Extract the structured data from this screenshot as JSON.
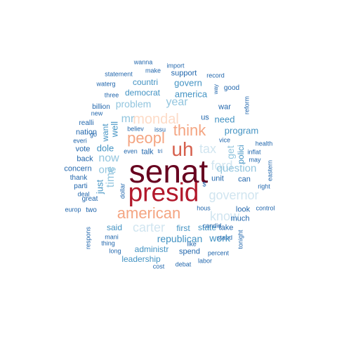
{
  "palette": {
    "c1": "#67001f",
    "c2": "#b2182b",
    "c3": "#d6604d",
    "c4": "#f4a582",
    "c5": "#fddbc7",
    "c6": "#d1e5f0",
    "c7": "#92c5de",
    "c8": "#4393c3",
    "c9": "#2166ac"
  },
  "words": [
    {
      "text": "senat",
      "color": "c1",
      "freq": 10
    },
    {
      "text": "presid",
      "color": "c2",
      "freq": 9
    },
    {
      "text": "uh",
      "color": "c3",
      "freq": 8
    },
    {
      "text": "peopl",
      "color": "c4",
      "freq": 7
    },
    {
      "text": "think",
      "color": "c4",
      "freq": 7
    },
    {
      "text": "american",
      "color": "c4",
      "freq": 7
    },
    {
      "text": "mondal",
      "color": "c5",
      "freq": 6
    },
    {
      "text": "carter",
      "color": "c6",
      "freq": 6
    },
    {
      "text": "governor",
      "color": "c6",
      "freq": 6
    },
    {
      "text": "ford",
      "color": "c6",
      "freq": 6
    },
    {
      "text": "tax",
      "color": "c6",
      "freq": 6
    },
    {
      "text": "know",
      "color": "c6",
      "freq": 6
    },
    {
      "text": "question",
      "color": "c7",
      "freq": 5
    },
    {
      "text": "mr",
      "color": "c7",
      "freq": 5
    },
    {
      "text": "year",
      "color": "c7",
      "freq": 5
    },
    {
      "text": "time",
      "color": "c7",
      "freq": 5
    },
    {
      "text": "now",
      "color": "c7",
      "freq": 5
    },
    {
      "text": "one",
      "color": "c7",
      "freq": 5
    },
    {
      "text": "problem",
      "color": "c7",
      "freq": 5
    },
    {
      "text": "get",
      "color": "c7",
      "freq": 5
    },
    {
      "text": "republican",
      "color": "c8",
      "freq": 4
    },
    {
      "text": "work",
      "color": "c8",
      "freq": 4
    },
    {
      "text": "program",
      "color": "c8",
      "freq": 4
    },
    {
      "text": "dole",
      "color": "c8",
      "freq": 4
    },
    {
      "text": "well",
      "color": "c8",
      "freq": 4
    },
    {
      "text": "want",
      "color": "c8",
      "freq": 4
    },
    {
      "text": "need",
      "color": "c8",
      "freq": 4
    },
    {
      "text": "america",
      "color": "c8",
      "freq": 4
    },
    {
      "text": "govern",
      "color": "c8",
      "freq": 4
    },
    {
      "text": "democrat",
      "color": "c8",
      "freq": 4
    },
    {
      "text": "just",
      "color": "c8",
      "freq": 4
    },
    {
      "text": "first",
      "color": "c8",
      "freq": 4
    },
    {
      "text": "state",
      "color": "c8",
      "freq": 4
    },
    {
      "text": "administr",
      "color": "c8",
      "freq": 4
    },
    {
      "text": "leadership",
      "color": "c8",
      "freq": 4
    },
    {
      "text": "polici",
      "color": "c8",
      "freq": 4
    },
    {
      "text": "said",
      "color": "c8",
      "freq": 4
    },
    {
      "text": "countri",
      "color": "c8",
      "freq": 4
    },
    {
      "text": "war",
      "color": "c9",
      "freq": 3
    },
    {
      "text": "us",
      "color": "c9",
      "freq": 3
    },
    {
      "text": "talk",
      "color": "c9",
      "freq": 3
    },
    {
      "text": "much",
      "color": "c9",
      "freq": 3
    },
    {
      "text": "spend",
      "color": "c9",
      "freq": 3
    },
    {
      "text": "take",
      "color": "c9",
      "freq": 3
    },
    {
      "text": "can",
      "color": "c9",
      "freq": 3
    },
    {
      "text": "look",
      "color": "c9",
      "freq": 3
    },
    {
      "text": "unit",
      "color": "c9",
      "freq": 3
    },
    {
      "text": "support",
      "color": "c9",
      "freq": 3
    },
    {
      "text": "billion",
      "color": "c9",
      "freq": 3
    },
    {
      "text": "back",
      "color": "c9",
      "freq": 3
    },
    {
      "text": "nation",
      "color": "c9",
      "freq": 3
    },
    {
      "text": "vote",
      "color": "c9",
      "freq": 3
    },
    {
      "text": "realli",
      "color": "c9",
      "freq": 3
    },
    {
      "text": "concern",
      "color": "c9",
      "freq": 3
    },
    {
      "text": "thank",
      "color": "c9",
      "freq": 3
    },
    {
      "text": "parti",
      "color": "c9",
      "freq": 3
    },
    {
      "text": "great",
      "color": "c9",
      "freq": 3
    },
    {
      "text": "two",
      "color": "c9",
      "freq": 3
    },
    {
      "text": "three",
      "color": "c9",
      "freq": 2
    },
    {
      "text": "waterg",
      "color": "c9",
      "freq": 2
    },
    {
      "text": "statement",
      "color": "c9",
      "freq": 2
    },
    {
      "text": "make",
      "color": "c9",
      "freq": 2
    },
    {
      "text": "import",
      "color": "c9",
      "freq": 2
    },
    {
      "text": "wanna",
      "color": "c9",
      "freq": 2
    },
    {
      "text": "record",
      "color": "c9",
      "freq": 2
    },
    {
      "text": "good",
      "color": "c9",
      "freq": 2
    },
    {
      "text": "way",
      "color": "c9",
      "freq": 2
    },
    {
      "text": "reform",
      "color": "c9",
      "freq": 2
    },
    {
      "text": "new",
      "color": "c9",
      "freq": 2
    },
    {
      "text": "believ",
      "color": "c9",
      "freq": 2
    },
    {
      "text": "issu",
      "color": "c9",
      "freq": 2
    },
    {
      "text": "go",
      "color": "c9",
      "freq": 2
    },
    {
      "text": "everi",
      "color": "c9",
      "freq": 2
    },
    {
      "text": "even",
      "color": "c9",
      "freq": 2
    },
    {
      "text": "tri",
      "color": "c9",
      "freq": 2
    },
    {
      "text": "vice",
      "color": "c9",
      "freq": 2
    },
    {
      "text": "health",
      "color": "c9",
      "freq": 2
    },
    {
      "text": "inflat",
      "color": "c9",
      "freq": 2
    },
    {
      "text": "may",
      "color": "c9",
      "freq": 2
    },
    {
      "text": "eastern",
      "color": "c9",
      "freq": 2
    },
    {
      "text": "right",
      "color": "c9",
      "freq": 2
    },
    {
      "text": "deal",
      "color": "c9",
      "freq": 2
    },
    {
      "text": "dollar",
      "color": "c9",
      "freq": 2
    },
    {
      "text": "$",
      "color": "c9",
      "freq": 2
    },
    {
      "text": "europ",
      "color": "c9",
      "freq": 2
    },
    {
      "text": "respons",
      "color": "c9",
      "freq": 2
    },
    {
      "text": "hous",
      "color": "c9",
      "freq": 2
    },
    {
      "text": "candid",
      "color": "c9",
      "freq": 2
    },
    {
      "text": "control",
      "color": "c9",
      "freq": 2
    },
    {
      "text": "mani",
      "color": "c9",
      "freq": 2
    },
    {
      "text": "thing",
      "color": "c9",
      "freq": 2
    },
    {
      "text": "long",
      "color": "c9",
      "freq": 2
    },
    {
      "text": "like",
      "color": "c9",
      "freq": 2
    },
    {
      "text": "stand",
      "color": "c9",
      "freq": 2
    },
    {
      "text": "tonight",
      "color": "c9",
      "freq": 2
    },
    {
      "text": "percent",
      "color": "c9",
      "freq": 2
    },
    {
      "text": "debat",
      "color": "c9",
      "freq": 2
    },
    {
      "text": "labor",
      "color": "c9",
      "freq": 2
    },
    {
      "text": "cost",
      "color": "c9",
      "freq": 2
    }
  ]
}
